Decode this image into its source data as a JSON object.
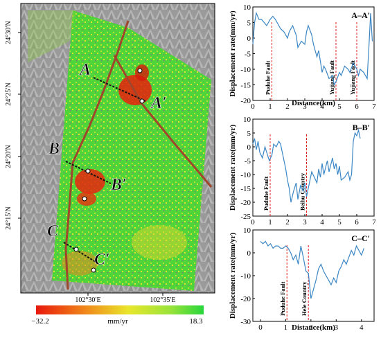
{
  "map": {
    "lat_labels": [
      "24°30′N",
      "24°25′N",
      "24°20′N",
      "24°15′N"
    ],
    "lon_labels": [
      "102°30′E",
      "102°35′E"
    ],
    "profile_labels": [
      "A",
      "A′",
      "B",
      "B′",
      "C",
      "C′"
    ],
    "colorbar": {
      "min_label": "−32.2",
      "max_label": "18.3",
      "unit": "mm/yr"
    },
    "colors": {
      "fault": "#a0462a",
      "profile": "#111111",
      "hillshade": "#8a8a8a",
      "background": "#ffffff"
    }
  },
  "chart_data": [
    {
      "type": "line",
      "title": "A–A′",
      "ylabel": "Displacement rate(mm/yr)",
      "xlabel": "Distance(km)",
      "xlim": [
        0,
        7
      ],
      "ylim": [
        -20,
        10
      ],
      "xticks": [
        "0",
        "1",
        "2",
        "3",
        "4",
        "5",
        "6",
        "7"
      ],
      "yticks": [
        "10",
        "5",
        "0",
        "-5",
        "-10",
        "-15",
        "-20"
      ],
      "x": [
        0,
        0.1,
        0.2,
        0.35,
        0.5,
        0.65,
        0.8,
        1.0,
        1.15,
        1.3,
        1.5,
        1.6,
        1.8,
        2.0,
        2.1,
        2.3,
        2.5,
        2.6,
        2.8,
        3.0,
        3.1,
        3.2,
        3.4,
        3.5,
        3.7,
        3.8,
        4.0,
        4.1,
        4.2,
        4.4,
        4.6,
        4.7,
        4.8,
        5.0,
        5.1,
        5.3,
        5.5,
        5.6,
        5.8,
        6.0,
        6.1,
        6.2,
        6.4,
        6.5,
        6.6,
        6.7,
        6.8,
        6.9
      ],
      "y": [
        -2,
        5,
        8,
        6,
        6,
        5,
        4,
        6,
        7,
        6,
        4,
        3,
        2,
        0,
        2,
        4,
        1,
        -3,
        -1,
        -2,
        2,
        4,
        1,
        -2,
        -6,
        -4,
        -11,
        -9,
        -10,
        -13,
        -12,
        -15,
        -14,
        -11,
        -12,
        -9,
        -10,
        -11,
        -8,
        -10,
        -12,
        -10,
        -11,
        -12,
        -13,
        -3,
        8,
        -1
      ],
      "annotations": [
        {
          "x": 1.1,
          "label": "Puduhe Fault"
        },
        {
          "x": 4.8,
          "label": "Yujiang Fault"
        },
        {
          "x": 6.0,
          "label": "Yujiang Fault"
        }
      ],
      "series_color": "#3b86c4"
    },
    {
      "type": "line",
      "title": "B–B′",
      "ylabel": "Displacement rate(mm/yr)",
      "xlabel": "",
      "xlim": [
        0,
        7
      ],
      "ylim": [
        -25,
        10
      ],
      "xticks": [
        "0",
        "1",
        "2",
        "3",
        "4",
        "5",
        "6",
        "7"
      ],
      "yticks": [
        "10",
        "5",
        "0",
        "-5",
        "-10",
        "-15",
        "-20",
        "-25"
      ],
      "x": [
        0,
        0.1,
        0.2,
        0.3,
        0.4,
        0.55,
        0.7,
        0.8,
        0.95,
        1.1,
        1.2,
        1.35,
        1.5,
        1.6,
        1.7,
        1.8,
        1.9,
        2.0,
        2.1,
        2.2,
        2.35,
        2.5,
        2.6,
        2.75,
        2.9,
        3.0,
        3.1,
        3.2,
        3.3,
        3.4,
        3.55,
        3.7,
        3.8,
        3.9,
        4.0,
        4.1,
        4.3,
        4.4,
        4.6,
        4.7,
        4.8,
        4.9,
        5.0,
        5.1,
        5.3,
        5.5,
        5.6,
        5.7,
        5.8,
        5.9,
        6.0,
        6.1,
        6.2
      ],
      "y": [
        1,
        3,
        -1,
        2,
        -2,
        -4,
        0,
        -2,
        -5,
        -3,
        1,
        0,
        2,
        1,
        -2,
        -5,
        -8,
        -12,
        -15,
        -20,
        -16,
        -13,
        -19,
        -14,
        -16,
        -13,
        -18,
        -15,
        -12,
        -9,
        -11,
        -13,
        -8,
        -11,
        -6,
        -10,
        -5,
        -9,
        -4,
        -8,
        -6,
        -10,
        -7,
        -12,
        -11,
        -9,
        -12,
        -10,
        2,
        5,
        4,
        6,
        3
      ],
      "annotations": [
        {
          "x": 1.0,
          "label": "Puduhe Fault"
        },
        {
          "x": 3.1,
          "label": "Beihu Country"
        }
      ],
      "series_color": "#3b86c4"
    },
    {
      "type": "line",
      "title": "C–C′",
      "ylabel": "Displacement rate(mm/yr)",
      "xlabel": "Distance(km)",
      "xlim": [
        -0.3,
        4.5
      ],
      "ylim": [
        -30,
        10
      ],
      "xticks": [
        "0",
        "1",
        "2",
        "3",
        "4"
      ],
      "yticks": [
        "10",
        "0",
        "-10",
        "-20",
        "-30"
      ],
      "x": [
        0,
        0.1,
        0.2,
        0.3,
        0.4,
        0.5,
        0.6,
        0.7,
        0.8,
        0.9,
        1.0,
        1.1,
        1.2,
        1.3,
        1.4,
        1.5,
        1.6,
        1.7,
        1.8,
        1.9,
        2.0,
        2.1,
        2.2,
        2.3,
        2.4,
        2.5,
        2.6,
        2.7,
        2.8,
        2.9,
        3.0,
        3.1,
        3.2,
        3.3,
        3.4,
        3.5,
        3.6,
        3.7,
        3.8,
        3.9,
        4.0,
        4.1
      ],
      "y": [
        5,
        4,
        5,
        3,
        4,
        2,
        3,
        3,
        2,
        2,
        3,
        2,
        0,
        -3,
        -1,
        -5,
        3,
        -2,
        -8,
        -9,
        -20,
        -16,
        -12,
        -7,
        -5,
        -8,
        -10,
        -12,
        -14,
        -11,
        -13,
        -8,
        -6,
        -3,
        -5,
        -2,
        1,
        -1,
        3,
        1,
        -1,
        2
      ],
      "annotations": [
        {
          "x": 1.05,
          "label": "Puduhe Fault"
        },
        {
          "x": 1.9,
          "label": "Hele Country"
        }
      ],
      "series_color": "#3b86c4"
    }
  ]
}
